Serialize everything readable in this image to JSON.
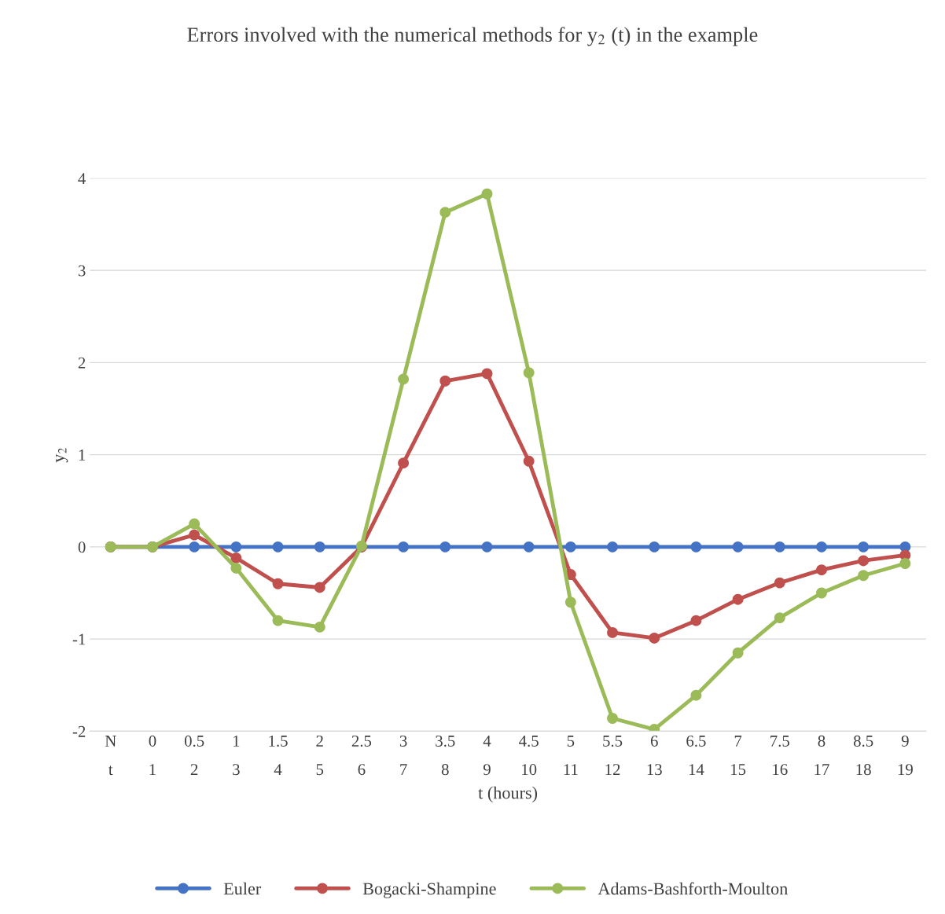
{
  "chart_data": {
    "type": "line",
    "title": "Errors involved with the numerical methods for y$_{2}$ (t) in the example",
    "xlabel": "t (hours)",
    "ylabel": "y$_{2}$",
    "categories": [
      "N\nt",
      "0\n1",
      "0.5\n2",
      "1\n3",
      "1.5\n4",
      "2\n5",
      "2.5\n6",
      "3\n7",
      "3.5\n8",
      "4\n9",
      "4.5\n10",
      "5\n11",
      "5.5\n12",
      "6\n13",
      "6.5\n14",
      "7\n15",
      "7.5\n16",
      "8\n17",
      "8.5\n18",
      "9\n19"
    ],
    "series": [
      {
        "name": "Euler",
        "color": "#4472c4",
        "values": [
          0,
          0,
          0,
          0,
          0,
          0,
          0,
          0,
          0,
          0,
          0,
          0,
          0,
          0,
          0,
          0,
          0,
          0,
          0,
          0
        ]
      },
      {
        "name": "Bogacki-Shampine",
        "color": "#c0504d",
        "values": [
          0,
          0,
          0.13,
          -0.12,
          -0.4,
          -0.44,
          0,
          0.91,
          1.8,
          1.88,
          0.93,
          -0.3,
          -0.93,
          -0.99,
          -0.8,
          -0.57,
          -0.39,
          -0.25,
          -0.15,
          -0.09
        ]
      },
      {
        "name": "Adams-Bashforth-Moulton",
        "color": "#9bbb59",
        "values": [
          0,
          0,
          0.25,
          -0.23,
          -0.8,
          -0.87,
          0.01,
          1.82,
          3.63,
          3.83,
          1.89,
          -0.6,
          -1.86,
          -1.98,
          -1.61,
          -1.15,
          -0.77,
          -0.5,
          -0.31,
          -0.18
        ]
      }
    ],
    "ylim": [
      -2,
      4
    ],
    "yticks": [
      -2,
      -1,
      0,
      1,
      2,
      3,
      4
    ],
    "grid": "y",
    "legend": "bottom",
    "marker": "circle",
    "line_style": "solid"
  }
}
